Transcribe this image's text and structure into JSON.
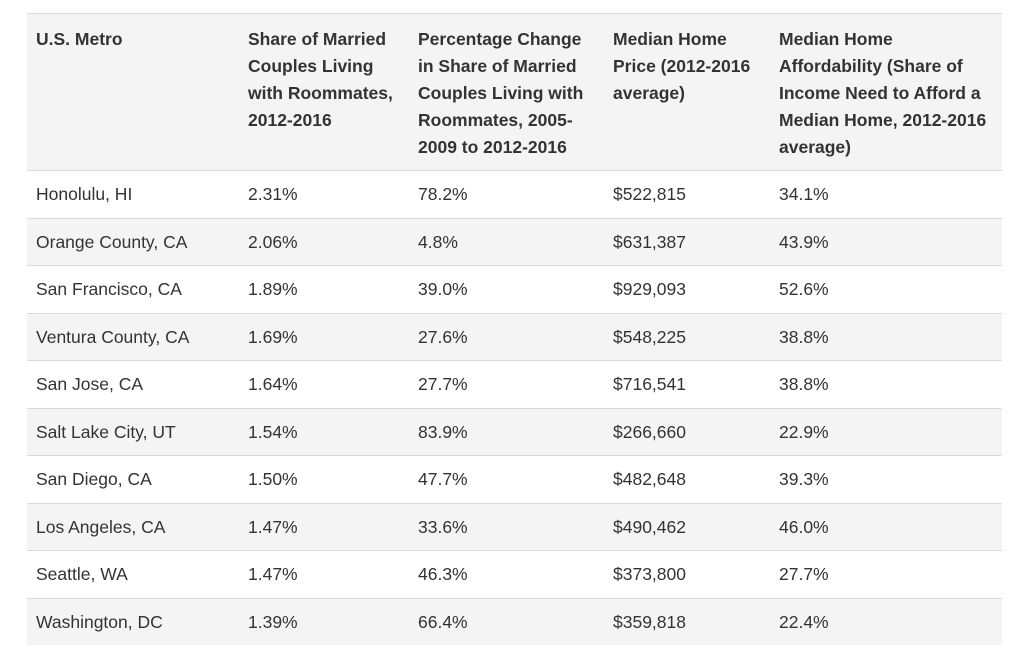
{
  "table": {
    "headers": [
      "U.S. Metro",
      "Share of Married Couples Living with Roommates, 2012-2016",
      "Percentage Change in Share of Married Couples Living with Roommates, 2005-2009 to 2012-2016",
      "Median Home Price (2012-2016 average)",
      "Median Home Affordability (Share of Income Need to Afford a Median Home, 2012-2016 average)"
    ],
    "rows": [
      [
        "Honolulu, HI",
        "2.31%",
        "78.2%",
        "$522,815",
        "34.1%"
      ],
      [
        "Orange County, CA",
        "2.06%",
        "4.8%",
        "$631,387",
        "43.9%"
      ],
      [
        "San Francisco, CA",
        "1.89%",
        "39.0%",
        "$929,093",
        "52.6%"
      ],
      [
        "Ventura County, CA",
        "1.69%",
        "27.6%",
        "$548,225",
        "38.8%"
      ],
      [
        "San Jose, CA",
        "1.64%",
        "27.7%",
        "$716,541",
        "38.8%"
      ],
      [
        "Salt Lake City, UT",
        "1.54%",
        "83.9%",
        "$266,660",
        "22.9%"
      ],
      [
        "San Diego, CA",
        "1.50%",
        "47.7%",
        "$482,648",
        "39.3%"
      ],
      [
        "Los Angeles, CA",
        "1.47%",
        "33.6%",
        "$490,462",
        "46.0%"
      ],
      [
        "Seattle, WA",
        "1.47%",
        "46.3%",
        "$373,800",
        "27.7%"
      ],
      [
        "Washington, DC",
        "1.39%",
        "66.4%",
        "$359,818",
        "22.4%"
      ]
    ]
  }
}
